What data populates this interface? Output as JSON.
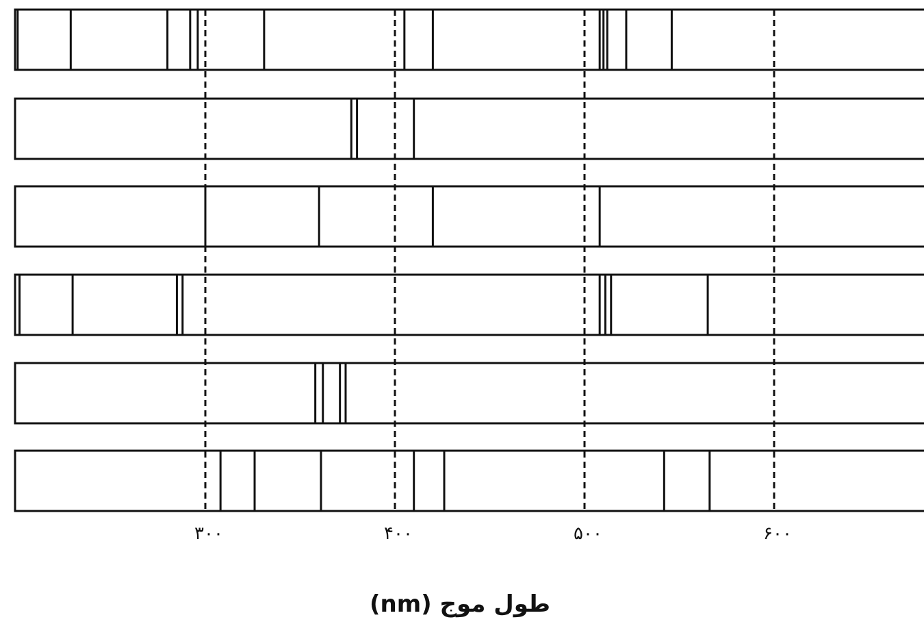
{
  "axis": {
    "title": "طول موج (nm)",
    "ticks": [
      {
        "value": 300,
        "label": "۳۰۰"
      },
      {
        "value": 400,
        "label": "۴۰۰"
      },
      {
        "value": 500,
        "label": "۵۰۰"
      },
      {
        "value": 600,
        "label": "۶۰۰"
      }
    ]
  },
  "spectra": [
    {
      "lines": [
        201,
        229,
        280,
        292,
        296,
        331,
        405,
        420,
        508,
        510,
        512,
        522,
        546
      ]
    },
    {
      "lines": [
        377,
        380,
        410
      ]
    },
    {
      "lines": [
        300,
        360,
        420,
        508
      ]
    },
    {
      "lines": [
        202,
        230,
        285,
        288,
        508,
        511,
        514,
        565
      ]
    },
    {
      "lines": [
        358,
        362,
        371,
        374
      ]
    },
    {
      "lines": [
        308,
        326,
        361,
        410,
        426,
        542,
        566
      ]
    }
  ],
  "colors": {
    "line": "#111111",
    "guide": "#111111",
    "background": "#ffffff"
  }
}
